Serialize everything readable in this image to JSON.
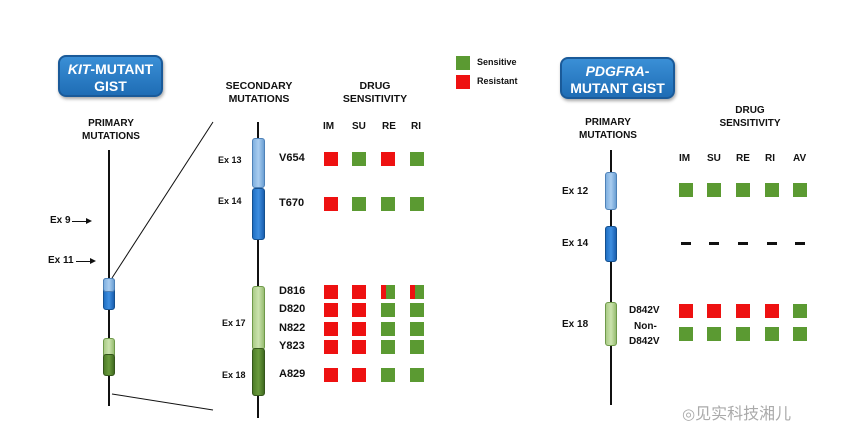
{
  "legend": {
    "sensitive_label": "Sensitive",
    "resistant_label": "Resistant",
    "sensitive_color": "#5b9a32",
    "resistant_color": "#ee1111"
  },
  "kit": {
    "badge_italic": "KIT",
    "badge_rest": "-MUTANT",
    "badge_line2": "GIST",
    "primary_line1": "PRIMARY",
    "primary_line2": "MUTATIONS",
    "primary_exons": [
      "Ex 9",
      "Ex 11"
    ],
    "secondary_line1": "SECONDARY",
    "secondary_line2": "MUTATIONS",
    "drug_line1": "DRUG",
    "drug_line2": "SENSITIVITY",
    "drugs": [
      "IM",
      "SU",
      "RE",
      "RI"
    ],
    "exons": [
      "Ex 13",
      "Ex 14",
      "Ex 17",
      "Ex 18"
    ],
    "mutations": [
      {
        "name": "V654",
        "sensitivity": [
          "R",
          "S",
          "R",
          "S"
        ]
      },
      {
        "name": "T670",
        "sensitivity": [
          "R",
          "S",
          "S",
          "S"
        ]
      },
      {
        "name": "D816",
        "sensitivity": [
          "R",
          "R",
          "RS",
          "RS"
        ]
      },
      {
        "name": "D820",
        "sensitivity": [
          "R",
          "R",
          "S",
          "S"
        ]
      },
      {
        "name": "N822",
        "sensitivity": [
          "R",
          "R",
          "S",
          "S"
        ]
      },
      {
        "name": "Y823",
        "sensitivity": [
          "R",
          "R",
          "S",
          "S"
        ]
      },
      {
        "name": "A829",
        "sensitivity": [
          "R",
          "R",
          "S",
          "S"
        ]
      }
    ]
  },
  "pdgfra": {
    "badge_italic": "PDGFRA",
    "badge_rest": "-",
    "badge_line2": "MUTANT GIST",
    "primary_line1": "PRIMARY",
    "primary_line2": "MUTATIONS",
    "drug_line1": "DRUG",
    "drug_line2": "SENSITIVITY",
    "drugs": [
      "IM",
      "SU",
      "RE",
      "RI",
      "AV"
    ],
    "exons": [
      "Ex 12",
      "Ex 14",
      "Ex 18"
    ],
    "mutations": [
      {
        "name": "D842V",
        "sensitivity": [
          "R",
          "R",
          "R",
          "R",
          "S"
        ]
      },
      {
        "name": "Non-",
        "sensitivity": []
      },
      {
        "name": "D842V",
        "sensitivity": [
          "S",
          "S",
          "S",
          "S",
          "S"
        ]
      }
    ],
    "ex12_row": [
      "S",
      "S",
      "S",
      "S",
      "S"
    ],
    "ex14_row": [
      "-",
      "-",
      "-",
      "-",
      "-"
    ]
  },
  "watermark": "见实科技湘儿"
}
